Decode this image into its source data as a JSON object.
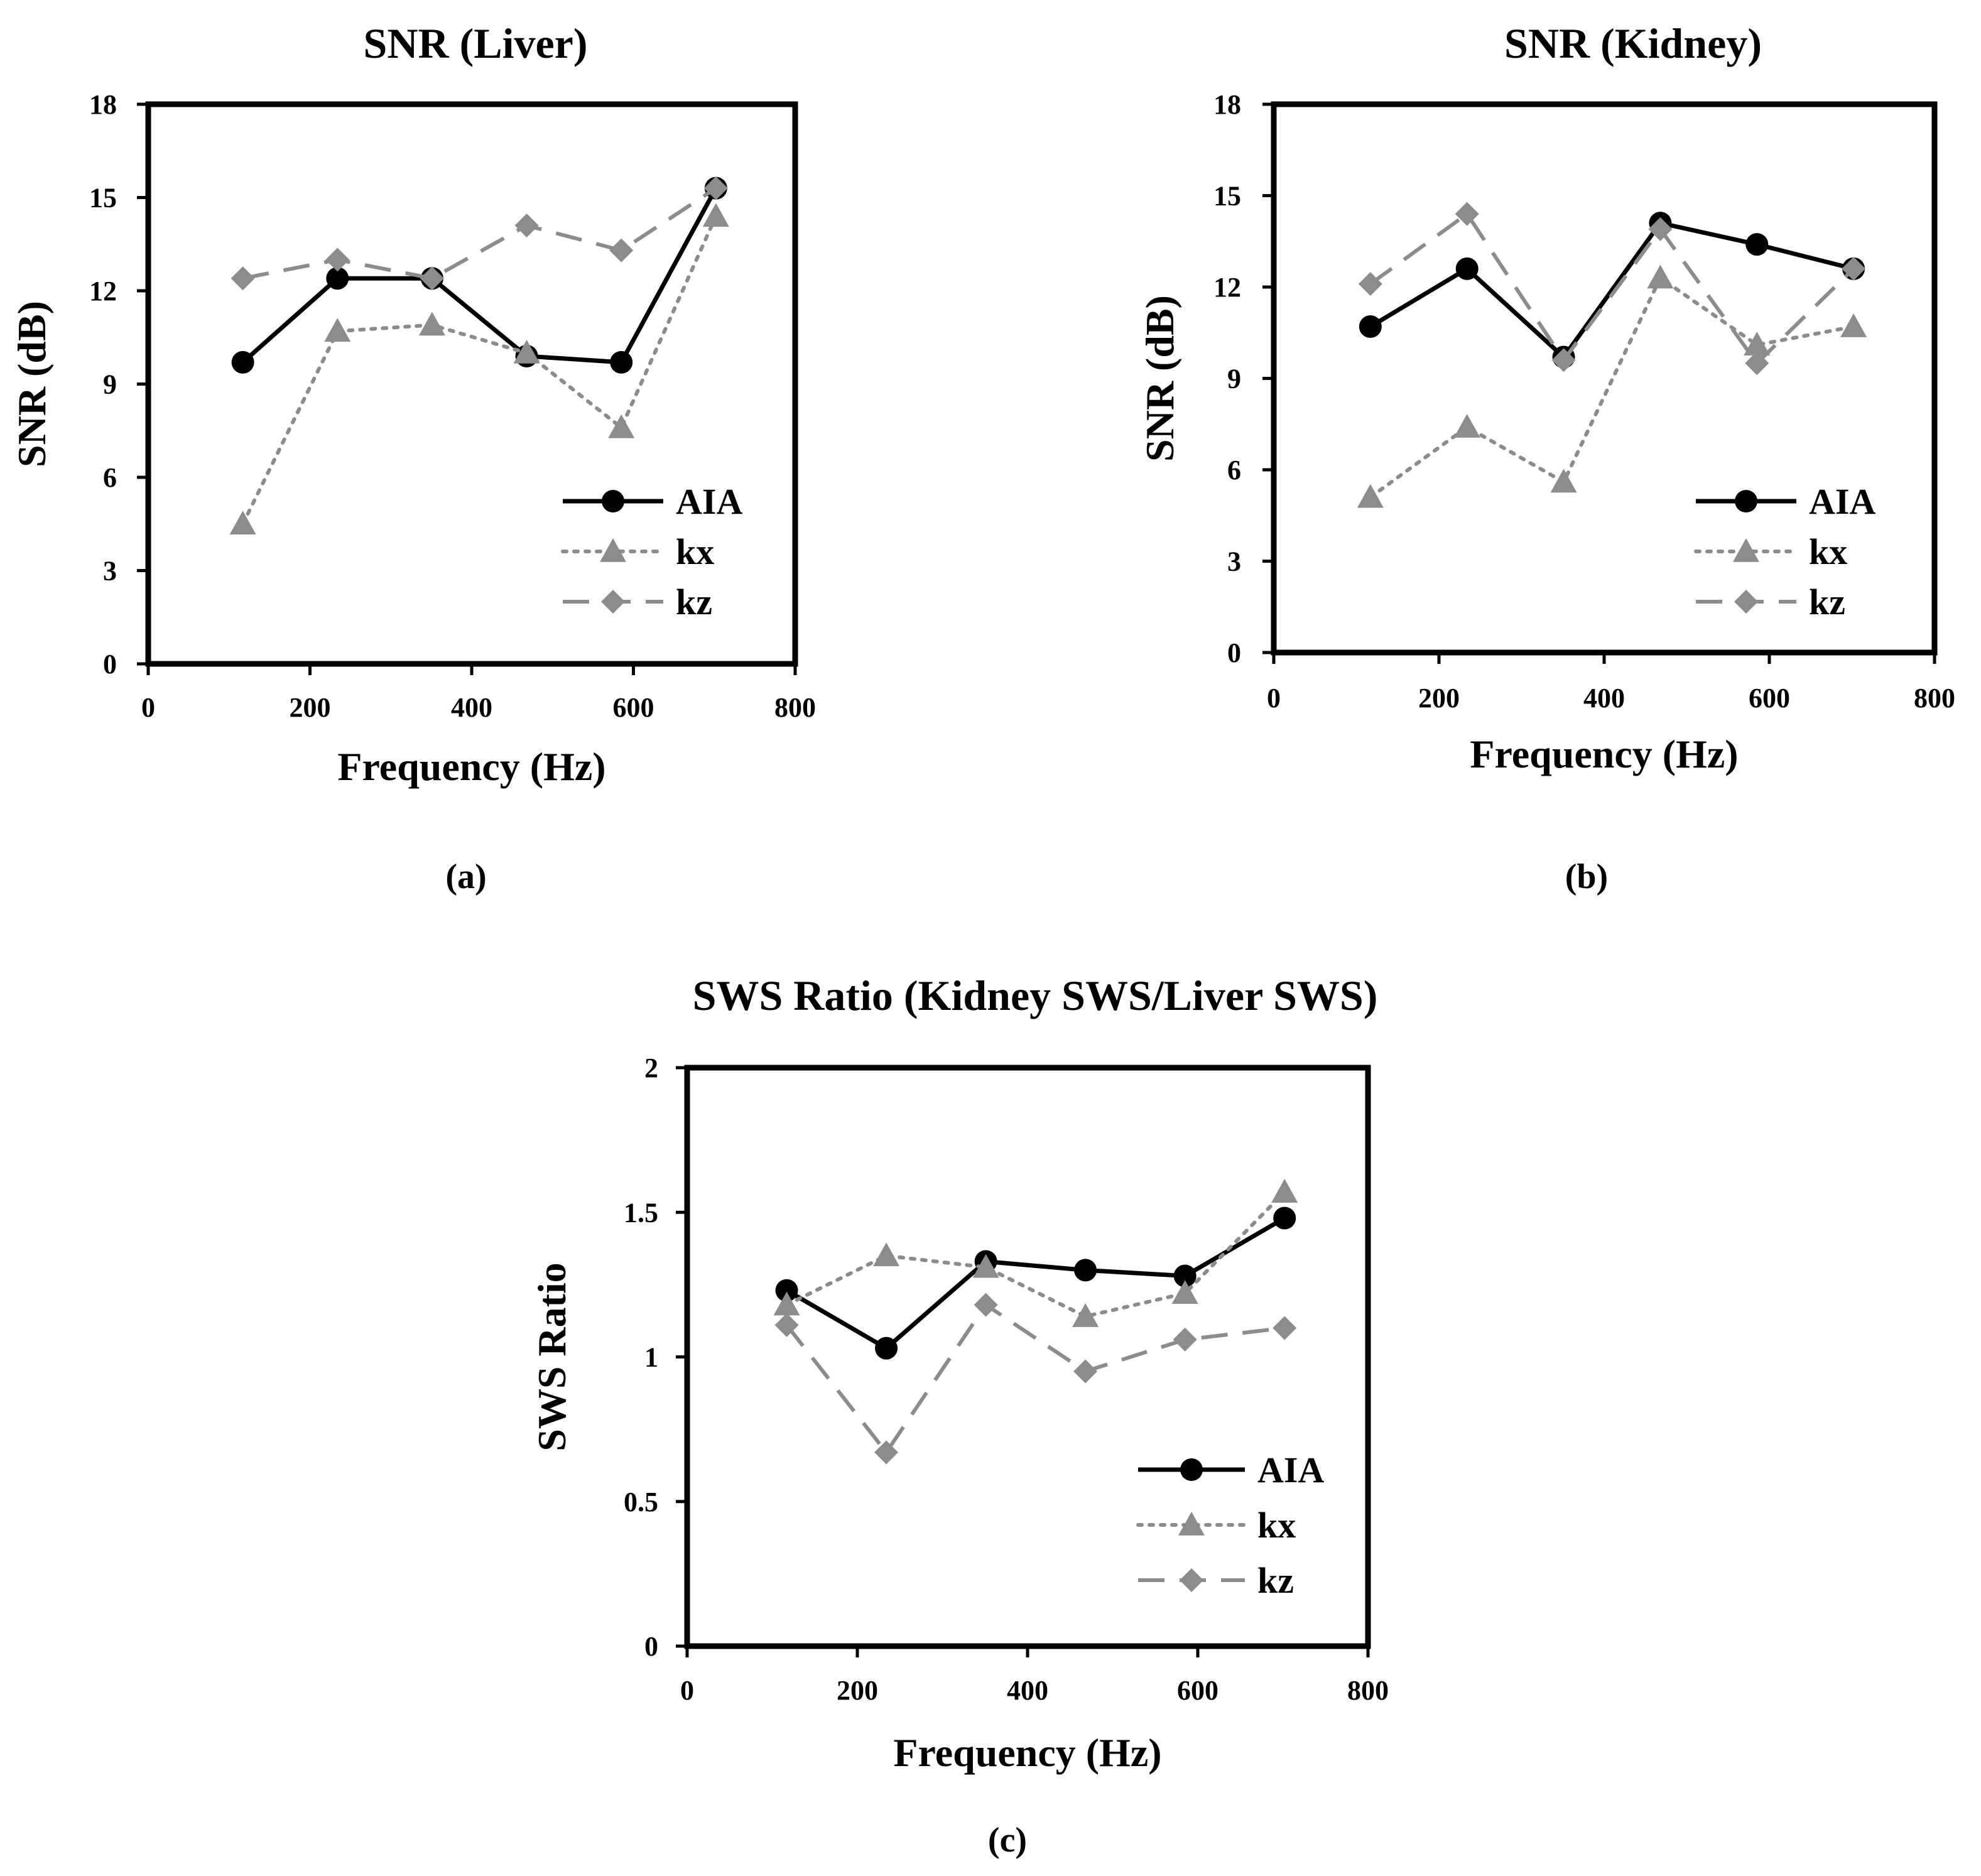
{
  "colors": {
    "AIA": "#000000",
    "kx": "#8c8c8c",
    "kz": "#8c8c8c"
  },
  "chart_data": [
    {
      "type": "line",
      "caption": "(a)",
      "title": "SNR (Liver)",
      "xlabel": "Frequency (Hz)",
      "ylabel": "SNR (dB)",
      "xlim": [
        0,
        800
      ],
      "ylim": [
        0,
        18
      ],
      "xticks": [
        0,
        200,
        400,
        600,
        800
      ],
      "yticks": [
        0,
        3,
        6,
        9,
        12,
        15,
        18
      ],
      "grid": false,
      "legend": "bottom-right",
      "x": [
        117,
        234,
        351,
        468,
        585,
        702
      ],
      "series": [
        {
          "name": "AIA",
          "style": "solid",
          "marker": "circle",
          "values": [
            9.7,
            12.4,
            12.4,
            9.9,
            9.7,
            15.3
          ]
        },
        {
          "name": "kx",
          "style": "dotted",
          "marker": "triangle",
          "values": [
            4.5,
            10.7,
            10.9,
            10.0,
            7.6,
            14.4
          ]
        },
        {
          "name": "kz",
          "style": "dashed",
          "marker": "diamond",
          "values": [
            12.4,
            13.0,
            12.4,
            14.1,
            13.3,
            15.3
          ]
        }
      ]
    },
    {
      "type": "line",
      "caption": "(b)",
      "title": "SNR (Kidney)",
      "xlabel": "Frequency (Hz)",
      "ylabel": "SNR (dB)",
      "xlim": [
        0,
        800
      ],
      "ylim": [
        0,
        18
      ],
      "xticks": [
        0,
        200,
        400,
        600,
        800
      ],
      "yticks": [
        0,
        3,
        6,
        9,
        12,
        15,
        18
      ],
      "grid": false,
      "legend": "bottom-right",
      "x": [
        117,
        234,
        351,
        468,
        585,
        702
      ],
      "series": [
        {
          "name": "AIA",
          "style": "solid",
          "marker": "circle",
          "values": [
            10.7,
            12.6,
            9.7,
            14.1,
            13.4,
            12.6
          ]
        },
        {
          "name": "kx",
          "style": "dotted",
          "marker": "triangle",
          "values": [
            5.1,
            7.4,
            5.6,
            12.3,
            10.1,
            10.7
          ]
        },
        {
          "name": "kz",
          "style": "dashed",
          "marker": "diamond",
          "values": [
            12.1,
            14.4,
            9.6,
            13.9,
            9.5,
            12.6
          ]
        }
      ]
    },
    {
      "type": "line",
      "caption": "(c)",
      "title": "SWS Ratio (Kidney SWS/Liver  SWS)",
      "xlabel": "Frequency (Hz)",
      "ylabel": "SWS Ratio",
      "xlim": [
        0,
        800
      ],
      "ylim": [
        0,
        2
      ],
      "xticks": [
        0,
        200,
        400,
        600,
        800
      ],
      "yticks": [
        0,
        0.5,
        1,
        1.5,
        2
      ],
      "grid": false,
      "legend": "bottom-right",
      "x": [
        117,
        234,
        351,
        468,
        585,
        702
      ],
      "series": [
        {
          "name": "AIA",
          "style": "solid",
          "marker": "circle",
          "values": [
            1.23,
            1.03,
            1.33,
            1.3,
            1.28,
            1.48
          ]
        },
        {
          "name": "kx",
          "style": "dotted",
          "marker": "triangle",
          "values": [
            1.18,
            1.35,
            1.31,
            1.14,
            1.22,
            1.57
          ]
        },
        {
          "name": "kz",
          "style": "dashed",
          "marker": "diamond",
          "values": [
            1.11,
            0.67,
            1.18,
            0.95,
            1.06,
            1.1
          ]
        }
      ]
    }
  ]
}
